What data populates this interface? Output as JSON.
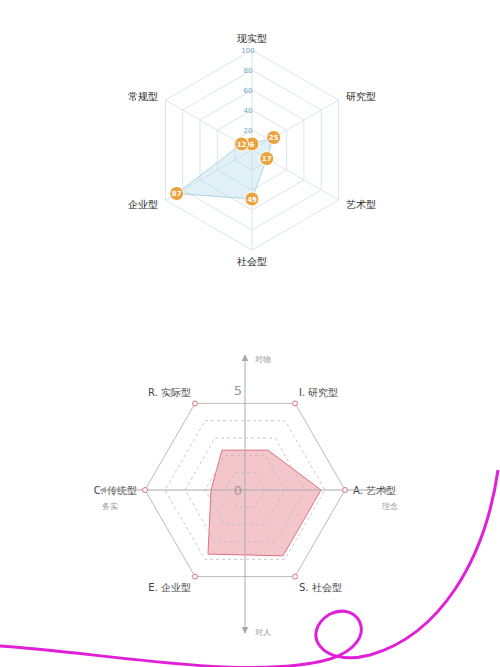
{
  "chart_data": [
    {
      "type": "radar",
      "categories": [
        "现实型",
        "研究型",
        "艺术型",
        "社会型",
        "企业型",
        "常规型"
      ],
      "values": [
        6,
        25,
        17,
        49,
        87,
        12
      ],
      "rlim": [
        0,
        100
      ],
      "rticks": [
        20,
        40,
        60,
        80,
        100
      ],
      "color": "#a9d6e8",
      "marker": "circle",
      "data_labels": true,
      "grid": true
    },
    {
      "type": "radar",
      "categories": [
        "R. 实际型",
        "I. 研究型",
        "A. 艺术型",
        "S. 社会型",
        "E. 企业型",
        "C. 传统型"
      ],
      "values": [
        2.3,
        2.3,
        3.8,
        3.8,
        3.7,
        1.7
      ],
      "rlim": [
        0,
        5
      ],
      "rticks": [
        0,
        5
      ],
      "color": "#e0707e",
      "grid": true,
      "annotations": [
        {
          "text": "对物",
          "position": "top"
        },
        {
          "text": "对人",
          "position": "bottom"
        },
        {
          "text": "务实",
          "position": "left"
        },
        {
          "text": "理念",
          "position": "right"
        }
      ]
    }
  ]
}
